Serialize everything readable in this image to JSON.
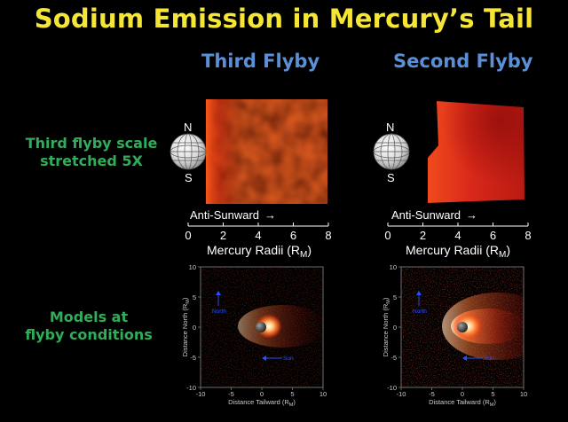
{
  "title": "Sodium Emission in Mercury’s Tail",
  "columns": {
    "third": "Third Flyby",
    "second": "Second Flyby"
  },
  "side_labels": {
    "top": [
      "Third flyby scale",
      "stretched 5X"
    ],
    "bottom": [
      "Models at",
      "flyby conditions"
    ]
  },
  "compass": {
    "north": "N",
    "south": "S"
  },
  "observation_axis": {
    "direction": "Anti-Sunward",
    "ticks": [
      "0",
      "2",
      "4",
      "6",
      "8"
    ],
    "label_main": "Mercury Radii (R",
    "label_sub": "M",
    "label_end": ")"
  },
  "model_axes": {
    "xlabel_main": "Distance Tailward (R",
    "ylabel_main": "Distance North (R",
    "sub": "M",
    "end": ")",
    "xticks": [
      "-10",
      "-5",
      "0",
      "5",
      "10"
    ],
    "yticks": [
      "10",
      "5",
      "0",
      "-5",
      "-10"
    ],
    "north_label": "North",
    "sun_label": "Sun"
  },
  "colors": {
    "title": "#f5e535",
    "heading": "#5b8fd6",
    "side": "#2fae5a",
    "annotation": "#2850ff"
  }
}
